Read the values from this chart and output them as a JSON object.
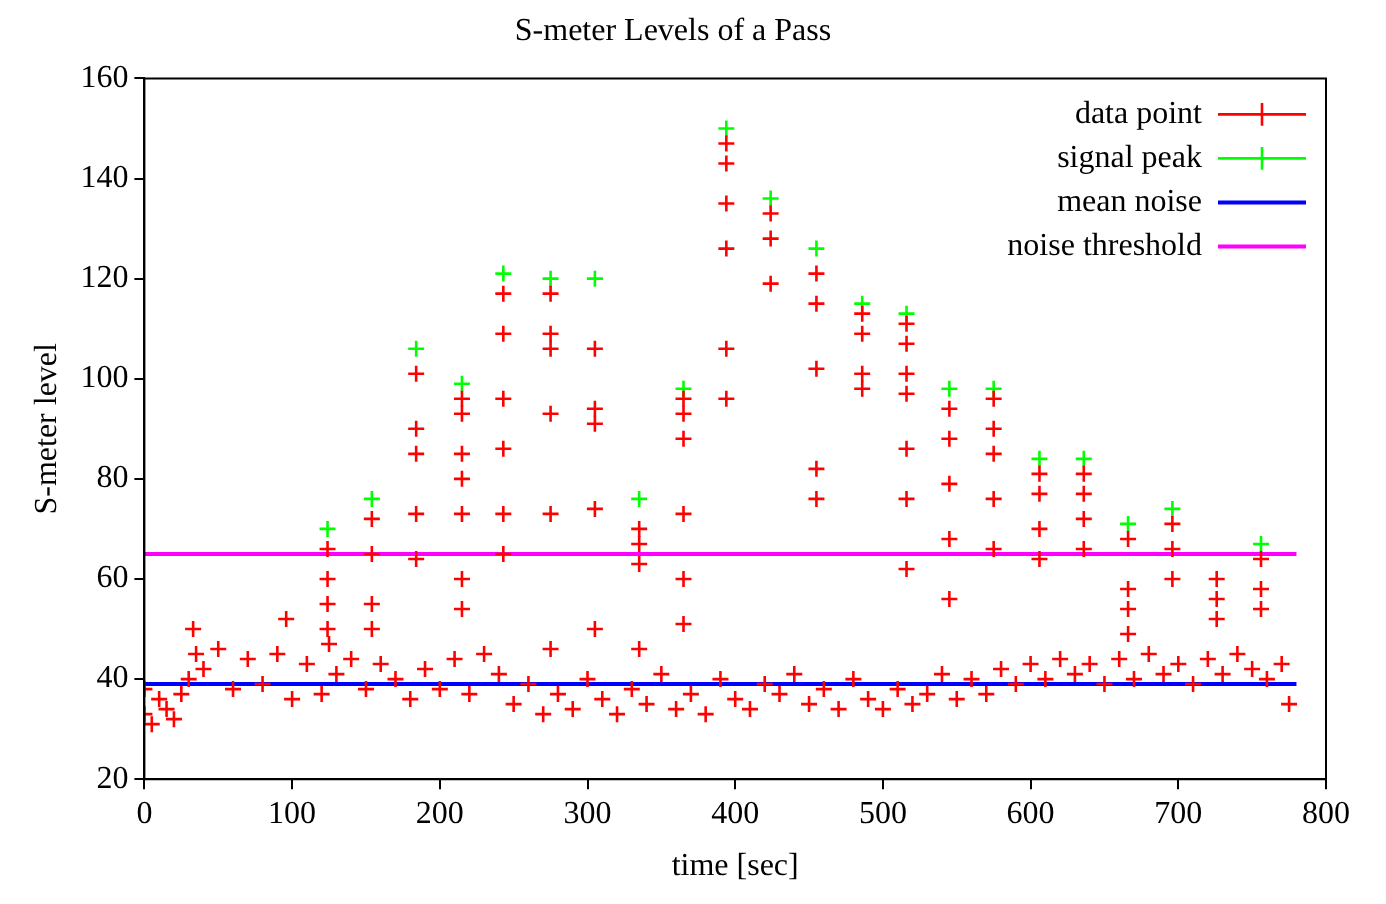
{
  "chart_data": {
    "type": "scatter",
    "title": "S-meter Levels of a Pass",
    "xlabel": "time [sec]",
    "ylabel": "S-meter level",
    "xlim": [
      0,
      800
    ],
    "xticks": [
      0,
      100,
      200,
      300,
      400,
      500,
      600,
      700,
      800
    ],
    "ylim": [
      20,
      160
    ],
    "yticks": [
      20,
      40,
      60,
      80,
      100,
      120,
      140,
      160
    ],
    "grid": false,
    "legend": "top right",
    "series": [
      {
        "name": "data point",
        "color": "#ff0000",
        "marker": "cross",
        "x": [
          0,
          0,
          5,
          10,
          15,
          20,
          25,
          30,
          33,
          35,
          40,
          50,
          60,
          70,
          80,
          90,
          96,
          100,
          110,
          120,
          125,
          130,
          140,
          150,
          160,
          170,
          180,
          190,
          200,
          210,
          220,
          230,
          240,
          250,
          260,
          270,
          280,
          290,
          300,
          310,
          320,
          330,
          340,
          350,
          360,
          370,
          380,
          390,
          400,
          410,
          420,
          430,
          440,
          450,
          460,
          470,
          480,
          490,
          500,
          510,
          520,
          530,
          540,
          550,
          560,
          570,
          580,
          590,
          600,
          610,
          620,
          630,
          640,
          650,
          660,
          670,
          680,
          690,
          700,
          710,
          720,
          730,
          740,
          750,
          760,
          770,
          775,
          124,
          124,
          124,
          124,
          154,
          154,
          154,
          154,
          184,
          184,
          184,
          184,
          184,
          215,
          215,
          215,
          215,
          215,
          215,
          215,
          243,
          243,
          243,
          243,
          243,
          243,
          275,
          275,
          275,
          275,
          275,
          275,
          305,
          305,
          305,
          305,
          305,
          335,
          335,
          335,
          335,
          365,
          365,
          365,
          365,
          365,
          365,
          394,
          394,
          394,
          394,
          394,
          394,
          424,
          424,
          424,
          455,
          455,
          455,
          455,
          455,
          486,
          486,
          486,
          486,
          516,
          516,
          516,
          516,
          516,
          516,
          516,
          545,
          545,
          545,
          545,
          545,
          575,
          575,
          575,
          575,
          575,
          606,
          606,
          606,
          606,
          636,
          636,
          636,
          636,
          666,
          666,
          666,
          666,
          696,
          696,
          696,
          726,
          726,
          726,
          756,
          756,
          756
        ],
        "values": [
          33,
          38,
          31,
          36,
          34,
          32,
          37,
          40,
          50,
          45,
          42,
          46,
          38,
          44,
          39,
          45,
          52,
          36,
          43,
          37,
          47,
          41,
          44,
          38,
          43,
          40,
          36,
          42,
          38,
          44,
          37,
          45,
          41,
          35,
          39,
          33,
          37,
          34,
          40,
          36,
          33,
          38,
          35,
          41,
          34,
          37,
          33,
          40,
          36,
          34,
          39,
          37,
          41,
          35,
          38,
          34,
          40,
          36,
          34,
          38,
          35,
          37,
          41,
          36,
          40,
          37,
          42,
          39,
          43,
          40,
          44,
          41,
          43,
          39,
          44,
          40,
          45,
          41,
          43,
          39,
          44,
          41,
          45,
          42,
          40,
          43,
          35,
          66,
          60,
          55,
          50,
          72,
          65,
          55,
          50,
          101,
          90,
          85,
          73,
          64,
          96,
          93,
          85,
          80,
          73,
          60,
          54,
          117,
          109,
          96,
          86,
          73,
          65,
          117,
          109,
          106,
          93,
          73,
          46,
          106,
          94,
          91,
          74,
          50,
          70,
          67,
          63,
          46,
          96,
          93,
          88,
          73,
          60,
          51,
          147,
          143,
          135,
          126,
          106,
          96,
          133,
          128,
          119,
          121,
          115,
          102,
          82,
          76,
          113,
          109,
          101,
          98,
          111,
          107,
          101,
          97,
          86,
          76,
          62,
          94,
          88,
          79,
          68,
          56,
          96,
          90,
          85,
          76,
          66,
          81,
          77,
          70,
          64,
          81,
          77,
          72,
          66,
          68,
          58,
          54,
          49,
          71,
          66,
          60,
          60,
          56,
          52,
          64,
          58,
          54
        ]
      },
      {
        "name": "signal peak",
        "color": "#00ff00",
        "marker": "cross",
        "x": [
          124,
          154,
          184,
          215,
          243,
          275,
          305,
          335,
          365,
          394,
          424,
          455,
          486,
          516,
          545,
          575,
          606,
          636,
          666,
          696,
          756
        ],
        "values": [
          70,
          76,
          106,
          99,
          121,
          120,
          120,
          76,
          98,
          150,
          136,
          126,
          115,
          113,
          98,
          98,
          84,
          84,
          71,
          74,
          67
        ]
      },
      {
        "name": "mean noise",
        "type": "line",
        "color": "#0000ff",
        "marker": "none",
        "x": [
          0,
          780
        ],
        "values": [
          39,
          39
        ]
      },
      {
        "name": "noise threshold",
        "type": "line",
        "color": "#ff00ff",
        "marker": "none",
        "x": [
          0,
          780
        ],
        "values": [
          65,
          65
        ]
      }
    ]
  }
}
